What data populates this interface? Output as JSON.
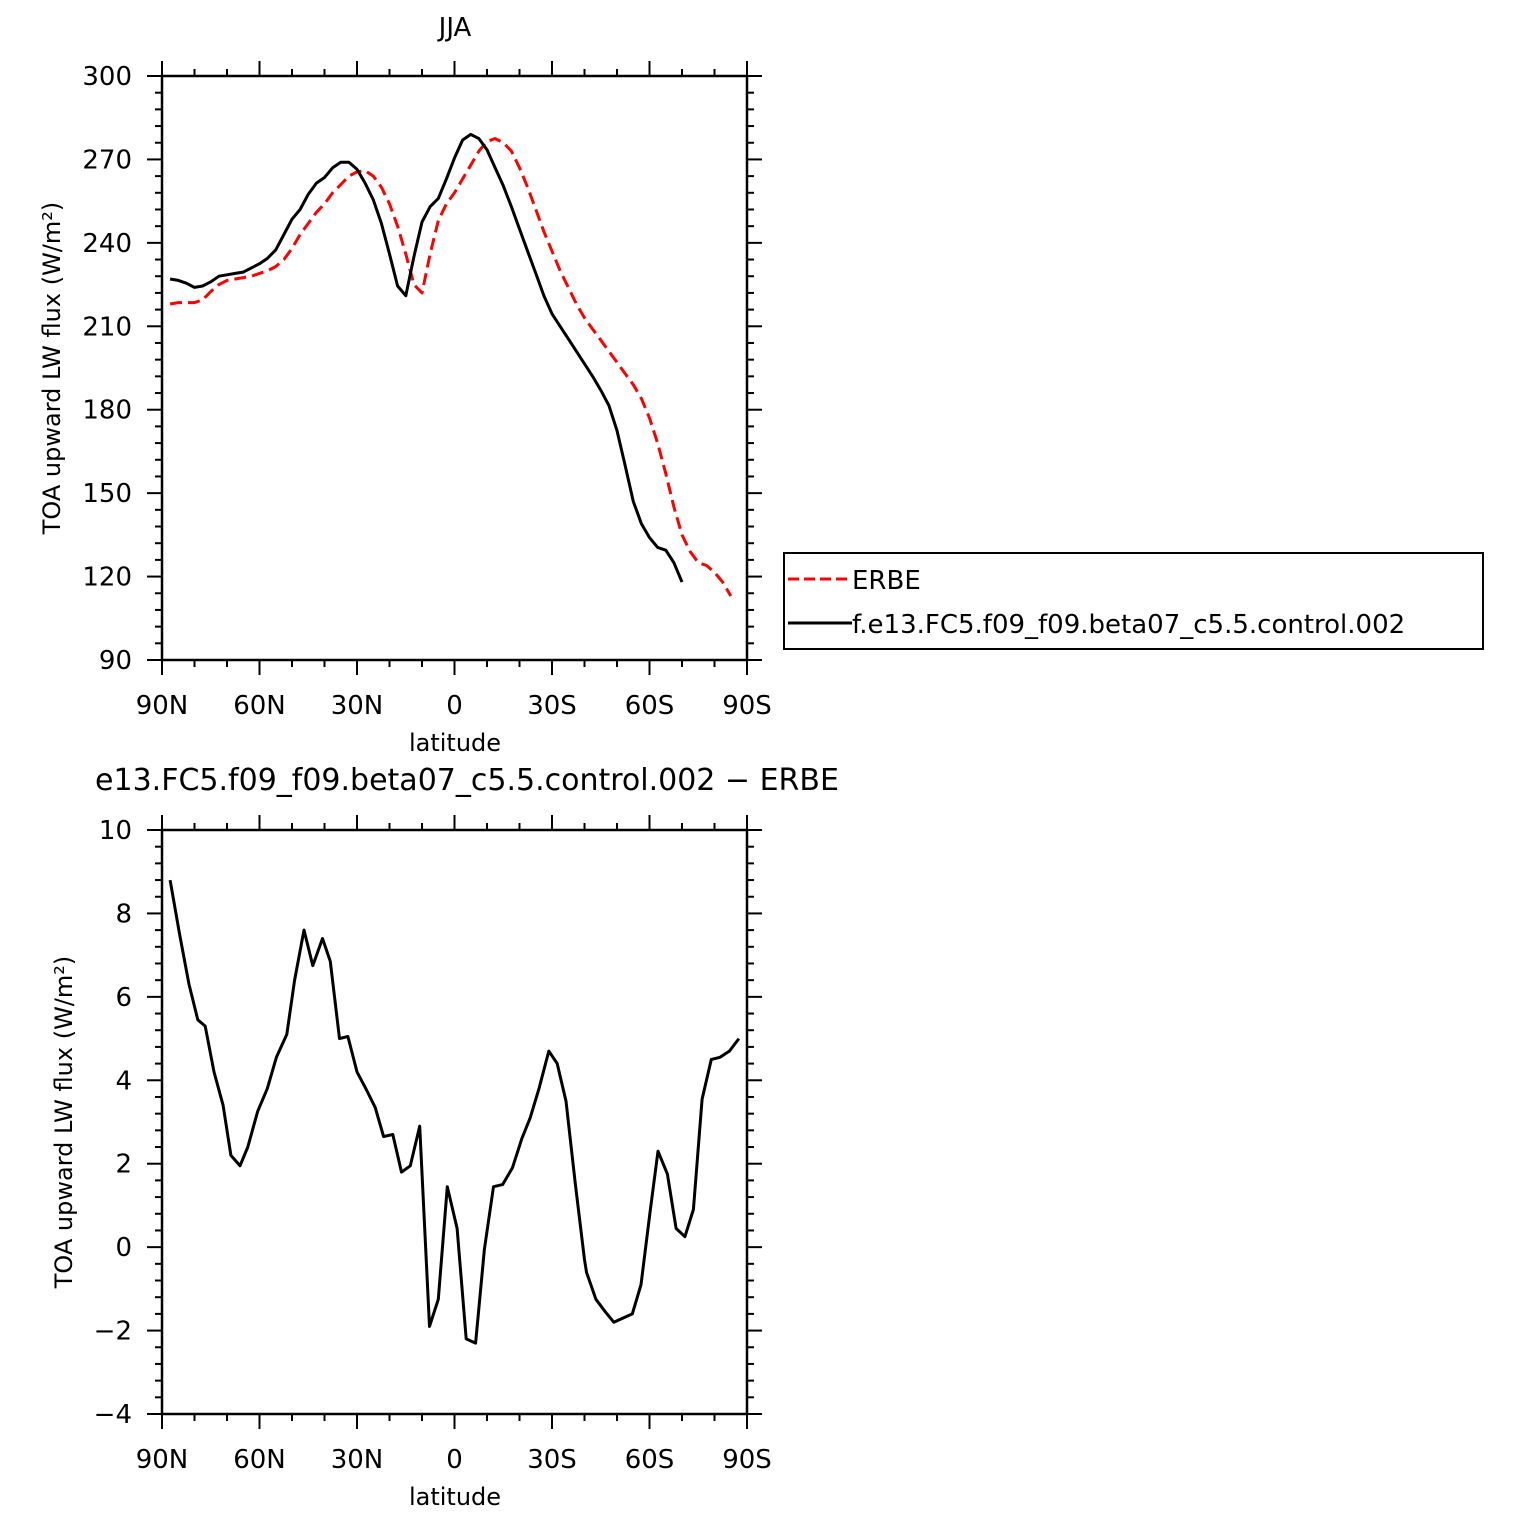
{
  "chart_data": [
    {
      "type": "line",
      "title": "JJA",
      "xlabel": "latitude",
      "ylabel": "TOA upward LW flux (W/m²)",
      "xlim": [
        -90,
        90
      ],
      "ylim": [
        90,
        300
      ],
      "x_ticks": [
        -90,
        -60,
        -30,
        0,
        30,
        60,
        90
      ],
      "x_tick_labels": [
        "90N",
        "60N",
        "30N",
        "0",
        "30S",
        "60S",
        "90S"
      ],
      "y_ticks": [
        90,
        120,
        150,
        180,
        210,
        240,
        270,
        300
      ],
      "y_tick_labels": [
        "90",
        "120",
        "150",
        "180",
        "210",
        "240",
        "270",
        "300"
      ],
      "legend": {
        "placement": "right"
      },
      "grid": false,
      "series": [
        {
          "name": "ERBE",
          "color": "#ff0000",
          "dash": "dashed",
          "points": [
            [
              -87.5,
              218
            ],
            [
              -85,
              218.5
            ],
            [
              -82.5,
              218.5
            ],
            [
              -80,
              218.5
            ],
            [
              -77.5,
              219.5
            ],
            [
              -75,
              222.5
            ],
            [
              -72.5,
              225
            ],
            [
              -70,
              226.5
            ],
            [
              -67.5,
              227
            ],
            [
              -65,
              227.5
            ],
            [
              -62.5,
              228
            ],
            [
              -60,
              229
            ],
            [
              -57.5,
              230
            ],
            [
              -55,
              231.5
            ],
            [
              -52.5,
              234
            ],
            [
              -50,
              238
            ],
            [
              -47.5,
              243
            ],
            [
              -45,
              247
            ],
            [
              -42.5,
              251
            ],
            [
              -40,
              254
            ],
            [
              -37.5,
              258
            ],
            [
              -35,
              261
            ],
            [
              -32.5,
              264
            ],
            [
              -30,
              265.5
            ],
            [
              -27.5,
              266
            ],
            [
              -25,
              264
            ],
            [
              -22.5,
              260
            ],
            [
              -20,
              254
            ],
            [
              -17.5,
              246
            ],
            [
              -15,
              236
            ],
            [
              -12.5,
              225
            ],
            [
              -10,
              222
            ],
            [
              -7.5,
              236
            ],
            [
              -5,
              248
            ],
            [
              -2.5,
              254
            ],
            [
              0,
              258
            ],
            [
              2.5,
              263
            ],
            [
              5,
              268
            ],
            [
              7.5,
              273
            ],
            [
              10,
              276.5
            ],
            [
              12.5,
              277.5
            ],
            [
              15,
              276
            ],
            [
              17.5,
              273
            ],
            [
              20,
              267
            ],
            [
              22.5,
              260
            ],
            [
              25,
              252
            ],
            [
              27.5,
              244
            ],
            [
              30,
              237
            ],
            [
              32.5,
              230
            ],
            [
              35,
              224
            ],
            [
              37.5,
              218
            ],
            [
              40,
              213
            ],
            [
              42.5,
              209
            ],
            [
              45,
              205
            ],
            [
              47.5,
              201
            ],
            [
              50,
              197
            ],
            [
              52.5,
              193
            ],
            [
              55,
              189
            ],
            [
              57.5,
              184
            ],
            [
              60,
              177
            ],
            [
              62.5,
              168
            ],
            [
              65,
              157
            ],
            [
              67.5,
              145
            ],
            [
              70,
              135
            ],
            [
              72.5,
              129
            ],
            [
              75,
              125
            ],
            [
              77.5,
              124
            ],
            [
              80,
              121.5
            ],
            [
              82.5,
              118
            ],
            [
              85,
              113
            ]
          ]
        },
        {
          "name": "f.e13.FC5.f09_f09.beta07_c5.5.control.002",
          "color": "#000000",
          "dash": "solid",
          "points": [
            [
              -87.5,
              227
            ],
            [
              -85,
              226.5
            ],
            [
              -82.5,
              225.5
            ],
            [
              -80,
              224
            ],
            [
              -77.5,
              224.5
            ],
            [
              -75,
              226
            ],
            [
              -72.5,
              228
            ],
            [
              -70,
              228.5
            ],
            [
              -67.5,
              229
            ],
            [
              -65,
              229.5
            ],
            [
              -62.5,
              231
            ],
            [
              -60,
              232.5
            ],
            [
              -57.5,
              234.5
            ],
            [
              -55,
              237.5
            ],
            [
              -52.5,
              243
            ],
            [
              -50,
              248.5
            ],
            [
              -47.5,
              252
            ],
            [
              -45,
              257.5
            ],
            [
              -42.5,
              261.5
            ],
            [
              -40,
              263.5
            ],
            [
              -37.5,
              267
            ],
            [
              -35,
              269
            ],
            [
              -32.5,
              269
            ],
            [
              -30,
              266.5
            ],
            [
              -27.5,
              261.5
            ],
            [
              -25,
              255.5
            ],
            [
              -22.5,
              247
            ],
            [
              -20,
              236
            ],
            [
              -17.5,
              224.5
            ],
            [
              -15,
              221
            ],
            [
              -12.5,
              235
            ],
            [
              -10,
              247.5
            ],
            [
              -7.5,
              253
            ],
            [
              -5,
              256
            ],
            [
              -2.5,
              263
            ],
            [
              0,
              270.5
            ],
            [
              2.5,
              277
            ],
            [
              5,
              279
            ],
            [
              7.5,
              277.5
            ],
            [
              10,
              273.5
            ],
            [
              12.5,
              267
            ],
            [
              15,
              260.5
            ],
            [
              17.5,
              253
            ],
            [
              20,
              245
            ],
            [
              22.5,
              237
            ],
            [
              25,
              229
            ],
            [
              27.5,
              221
            ],
            [
              30,
              214.5
            ],
            [
              32.5,
              210
            ],
            [
              35,
              205.5
            ],
            [
              37.5,
              201
            ],
            [
              40,
              196.5
            ],
            [
              42.5,
              192
            ],
            [
              45,
              187
            ],
            [
              47.5,
              181.5
            ],
            [
              50,
              172.5
            ],
            [
              52.5,
              160
            ],
            [
              55,
              147
            ],
            [
              57.5,
              139
            ],
            [
              60,
              134
            ],
            [
              62.5,
              130.5
            ],
            [
              65,
              129.5
            ],
            [
              67.5,
              125
            ],
            [
              70,
              118
            ]
          ]
        }
      ]
    },
    {
      "type": "line",
      "title": "e13.FC5.f09_f09.beta07_c5.5.control.002 − ERBE",
      "xlabel": "latitude",
      "ylabel": "TOA upward LW flux (W/m²)",
      "xlim": [
        -90,
        90
      ],
      "ylim": [
        -4,
        10
      ],
      "x_ticks": [
        -90,
        -60,
        -30,
        0,
        30,
        60,
        90
      ],
      "x_tick_labels": [
        "90N",
        "60N",
        "30N",
        "0",
        "30S",
        "60S",
        "90S"
      ],
      "y_ticks": [
        -4,
        -2,
        0,
        2,
        4,
        6,
        8,
        10
      ],
      "y_tick_labels": [
        "−4",
        "−2",
        "0",
        "2",
        "4",
        "6",
        "8",
        "10"
      ],
      "grid": false,
      "series": [
        {
          "color": "#000000",
          "dash": "solid",
          "points": [
            [
              -87.5,
              8.8
            ],
            [
              -84.6,
              7.5
            ],
            [
              -81.7,
              6.3
            ],
            [
              -79,
              5.45
            ],
            [
              -76.7,
              5.3
            ],
            [
              -74,
              4.2
            ],
            [
              -71.2,
              3.4
            ],
            [
              -68.8,
              2.2
            ],
            [
              -66,
              1.95
            ],
            [
              -63.6,
              2.4
            ],
            [
              -60.6,
              3.25
            ],
            [
              -57.6,
              3.8
            ],
            [
              -54.8,
              4.55
            ],
            [
              -51.6,
              5.1
            ],
            [
              -49.2,
              6.4
            ],
            [
              -46.3,
              7.6
            ],
            [
              -43.6,
              6.75
            ],
            [
              -40.6,
              7.4
            ],
            [
              -38.2,
              6.85
            ],
            [
              -35.4,
              5
            ],
            [
              -32.8,
              5.05
            ],
            [
              -30,
              4.2
            ],
            [
              -27.3,
              3.8
            ],
            [
              -24.4,
              3.35
            ],
            [
              -21.8,
              2.65
            ],
            [
              -19,
              2.7
            ],
            [
              -16.3,
              1.8
            ],
            [
              -13.6,
              1.95
            ],
            [
              -10.7,
              2.9
            ],
            [
              -7.7,
              -1.9
            ],
            [
              -5,
              -1.25
            ],
            [
              -2.2,
              1.45
            ],
            [
              0.8,
              0.45
            ],
            [
              3.6,
              -2.2
            ],
            [
              6.5,
              -2.3
            ],
            [
              9.2,
              -0.05
            ],
            [
              12,
              1.45
            ],
            [
              14.8,
              1.5
            ],
            [
              17.8,
              1.9
            ],
            [
              20.7,
              2.6
            ],
            [
              23.3,
              3.1
            ],
            [
              26,
              3.8
            ],
            [
              29,
              4.7
            ],
            [
              31.6,
              4.4
            ],
            [
              34.3,
              3.5
            ],
            [
              37.2,
              1.5
            ],
            [
              40,
              -0.3
            ],
            [
              40.6,
              -0.6
            ],
            [
              43.5,
              -1.25
            ],
            [
              46.4,
              -1.55
            ],
            [
              49,
              -1.8
            ],
            [
              51.8,
              -1.7
            ],
            [
              54.7,
              -1.6
            ],
            [
              57.4,
              -0.9
            ],
            [
              60.2,
              0.85
            ],
            [
              62.6,
              2.3
            ],
            [
              65.5,
              1.75
            ],
            [
              68.2,
              0.45
            ],
            [
              70.9,
              0.25
            ],
            [
              73.5,
              0.9
            ],
            [
              76.2,
              3.55
            ],
            [
              79,
              4.5
            ],
            [
              81.7,
              4.55
            ],
            [
              84.6,
              4.7
            ],
            [
              87.5,
              5
            ]
          ]
        }
      ]
    }
  ]
}
